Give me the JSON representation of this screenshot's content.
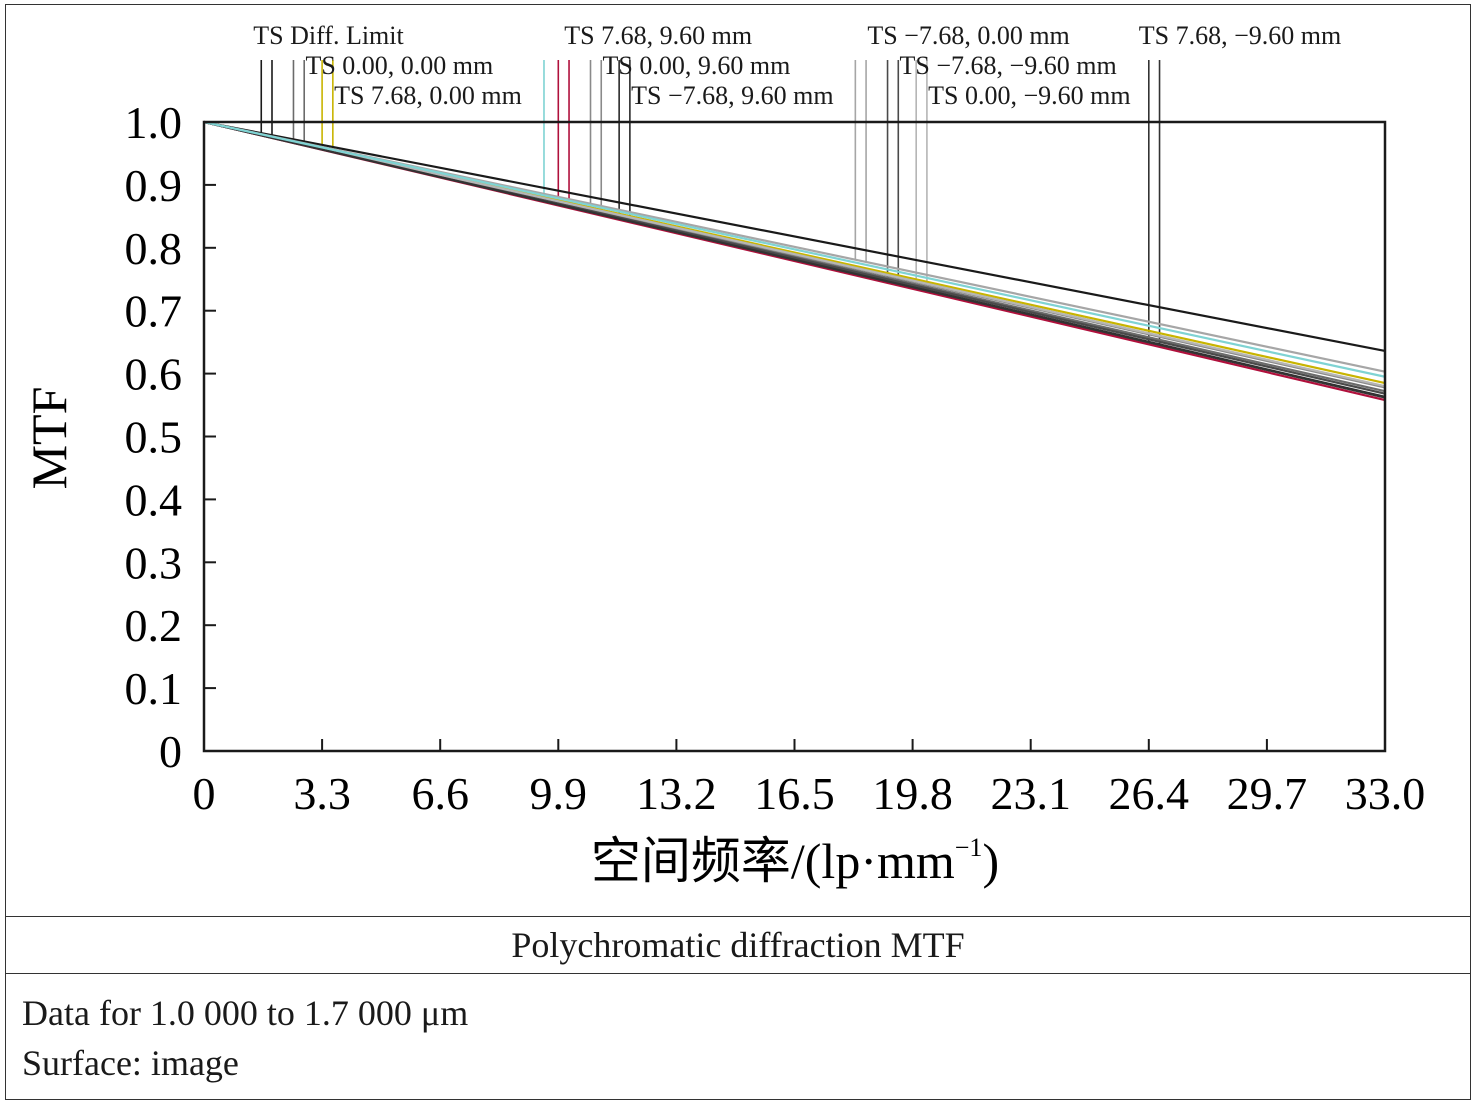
{
  "chart_data": {
    "type": "line",
    "title": "Polychromatic diffraction MTF",
    "xlabel": "空间频率/(lp·mm⁻¹)",
    "xlabel_parts": {
      "main": "空间频率/(lp·mm",
      "sup": "−1",
      "close": ")"
    },
    "ylabel": "MTF",
    "xlim": [
      0,
      33.0
    ],
    "ylim": [
      0,
      1.0
    ],
    "x_ticks": [
      "0",
      "3.3",
      "6.6",
      "9.9",
      "13.2",
      "16.5",
      "19.8",
      "23.1",
      "26.4",
      "29.7",
      "33.0"
    ],
    "y_ticks": [
      "0",
      "0.1",
      "0.2",
      "0.3",
      "0.4",
      "0.5",
      "0.6",
      "0.7",
      "0.8",
      "0.9",
      "1.0"
    ],
    "grid": false,
    "series": [
      {
        "name": "TS Diff. Limit",
        "color": "#1a1a1a",
        "x": [
          0,
          33.0
        ],
        "y": [
          1.0,
          0.636
        ],
        "markers": [
          1.6,
          1.9
        ]
      },
      {
        "name": "TS 0.00, 0.00 mm",
        "color": "#6b6b6b",
        "x": [
          0,
          33.0
        ],
        "y": [
          1.0,
          0.572
        ],
        "markers": [
          2.5,
          2.8
        ]
      },
      {
        "name": "TS 7.68, 0.00 mm",
        "color": "#c8b400",
        "x": [
          0,
          33.0
        ],
        "y": [
          1.0,
          0.585
        ],
        "markers": [
          3.3,
          3.6
        ]
      },
      {
        "name": "TS 7.68, 9.60 mm",
        "color": "#b0103c",
        "x": [
          0,
          33.0
        ],
        "y": [
          1.0,
          0.558
        ],
        "markers": [
          9.9,
          10.2
        ]
      },
      {
        "name": "TS 0.00, 9.60 mm",
        "color": "#8a8a8a",
        "x": [
          0,
          33.0
        ],
        "y": [
          1.0,
          0.578
        ],
        "markers": [
          10.8,
          11.1
        ]
      },
      {
        "name": "TS −7.68, 9.60 mm",
        "color": "#2a2a2a",
        "x": [
          0,
          33.0
        ],
        "y": [
          1.0,
          0.563
        ],
        "markers": [
          11.6,
          11.9
        ]
      },
      {
        "name": "TS −7.68, 0.00 mm",
        "color": "#a6a6a6",
        "x": [
          0,
          33.0
        ],
        "y": [
          1.0,
          0.603
        ],
        "markers": [
          18.2,
          18.5
        ]
      },
      {
        "name": "TS −7.68, −9.60 mm",
        "color": "#4a4a4a",
        "x": [
          0,
          33.0
        ],
        "y": [
          1.0,
          0.568
        ],
        "markers": [
          19.1,
          19.4
        ]
      },
      {
        "name": "TS 0.00, −9.60 mm",
        "color": "#b5b5b5",
        "x": [
          0,
          33.0
        ],
        "y": [
          1.0,
          0.58
        ],
        "markers": [
          19.9,
          20.2
        ]
      },
      {
        "name": "TS 7.68, −9.60 mm",
        "color": "#333333",
        "x": [
          0,
          33.0
        ],
        "y": [
          1.0,
          0.562
        ],
        "markers": [
          26.4,
          26.7
        ]
      },
      {
        "color": "#7fd3d3",
        "x": [
          0,
          33.0
        ],
        "y": [
          1.0,
          0.595
        ],
        "markers": [
          9.5
        ]
      }
    ],
    "legend_labels": [
      {
        "text": "TS Diff. Limit",
        "series": 0
      },
      {
        "text": "TS 0.00, 0.00 mm",
        "series": 1
      },
      {
        "text": "TS 7.68, 0.00 mm",
        "series": 2
      },
      {
        "text": "TS 7.68, 9.60 mm",
        "series": 3
      },
      {
        "text": "TS 0.00, 9.60 mm",
        "series": 4
      },
      {
        "text": "TS −7.68, 9.60 mm",
        "series": 5
      },
      {
        "text": "TS −7.68, 0.00 mm",
        "series": 6
      },
      {
        "text": "TS −7.68, −9.60 mm",
        "series": 7
      },
      {
        "text": "TS 0.00, −9.60 mm",
        "series": 8
      },
      {
        "text": "TS 7.68, −9.60 mm",
        "series": 9
      }
    ]
  },
  "info": {
    "line1": "Data for 1.0 000 to 1.7 000 μm",
    "line2": "Surface: image"
  }
}
